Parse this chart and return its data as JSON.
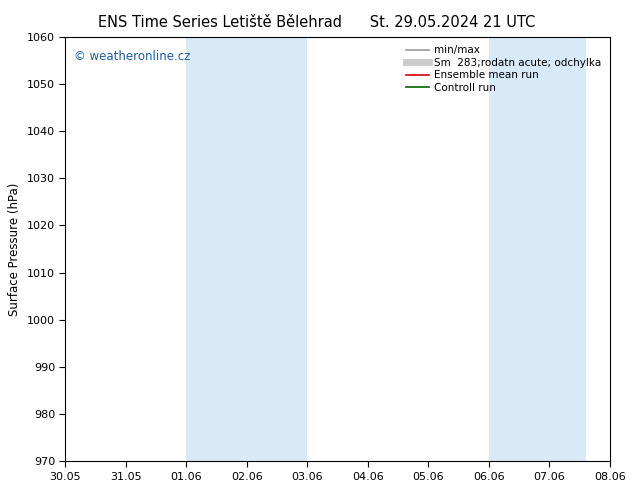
{
  "title_left": "ENS Time Series Letiště Bělehrad",
  "title_right": "St. 29.05.2024 21 UTC",
  "ylabel": "Surface Pressure (hPa)",
  "ylim": [
    970,
    1060
  ],
  "yticks": [
    970,
    980,
    990,
    1000,
    1010,
    1020,
    1030,
    1040,
    1050,
    1060
  ],
  "xtick_labels": [
    "30.05",
    "31.05",
    "01.06",
    "02.06",
    "03.06",
    "04.06",
    "05.06",
    "06.06",
    "07.06",
    "08.06"
  ],
  "xtick_positions": [
    0,
    1,
    2,
    3,
    4,
    5,
    6,
    7,
    8,
    9
  ],
  "shaded_regions": [
    {
      "x_start": 2,
      "x_end": 4,
      "color": "#d8eaf7"
    },
    {
      "x_start": 7,
      "x_end": 8.6,
      "color": "#d8eaf7"
    }
  ],
  "legend_entries": [
    {
      "label": "min/max",
      "color": "#999999",
      "lw": 1.2,
      "style": "solid"
    },
    {
      "label": "Sm  283;rodatn acute; odchylka",
      "color": "#cccccc",
      "lw": 5,
      "style": "solid"
    },
    {
      "label": "Ensemble mean run",
      "color": "#dd0000",
      "lw": 1.2,
      "style": "solid"
    },
    {
      "label": "Controll run",
      "color": "#006600",
      "lw": 1.2,
      "style": "solid"
    }
  ],
  "watermark_text": "© weatheronline.cz",
  "watermark_color": "#1a5fa8",
  "bg_color": "#ffffff",
  "plot_bg_color": "#ffffff",
  "title_fontsize": 10.5,
  "tick_fontsize": 8,
  "ylabel_fontsize": 8.5,
  "legend_fontsize": 7.5
}
